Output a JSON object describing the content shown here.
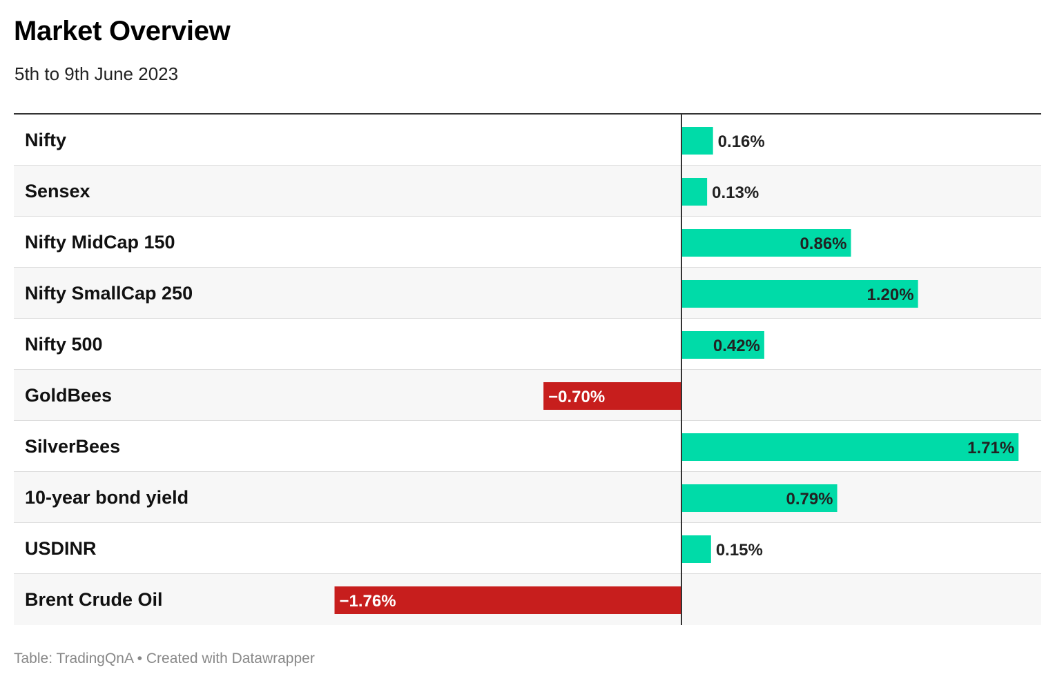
{
  "header": {
    "title": "Market Overview",
    "subtitle": "5th to 9th June 2023"
  },
  "footer": {
    "source_label": "Table:",
    "source_name": "TradingQnA",
    "separator": "•",
    "credit": "Created with Datawrapper"
  },
  "colors": {
    "positive": "#00dba8",
    "negative": "#c71e1d",
    "positive_text": "#222222",
    "negative_text": "#ffffff"
  },
  "chart_data": {
    "type": "bar",
    "orientation": "horizontal",
    "title": "Market Overview",
    "subtitle": "5th to 9th June 2023",
    "categories": [
      "Nifty",
      "Sensex",
      "Nifty MidCap 150",
      "Nifty SmallCap 250",
      "Nifty 500",
      "GoldBees",
      "SilverBees",
      "10-year bond yield",
      "USDINR",
      "Brent Crude Oil"
    ],
    "values": [
      0.16,
      0.13,
      0.86,
      1.2,
      0.42,
      -0.7,
      1.71,
      0.79,
      0.15,
      -1.76
    ],
    "value_labels": [
      "0.16%",
      "0.13%",
      "0.86%",
      "1.20%",
      "0.42%",
      "−0.70%",
      "1.71%",
      "0.79%",
      "0.15%",
      "−1.76%"
    ],
    "unit": "%",
    "xlim": [
      -3.38,
      1.83
    ],
    "grid": false,
    "legend": "none"
  }
}
